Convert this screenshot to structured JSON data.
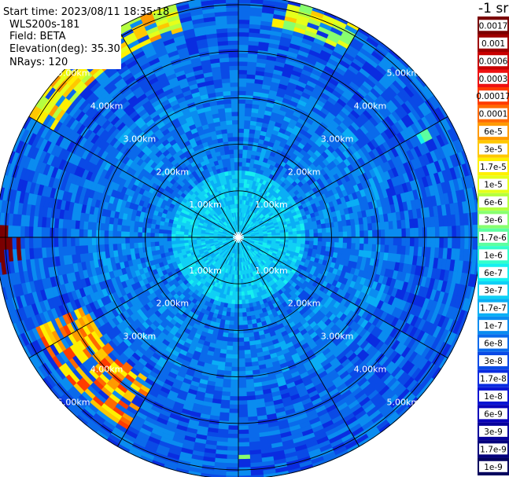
{
  "info": {
    "start_time": "Start time: 2023/08/11 18:35:18",
    "instrument": "WLS200s-181",
    "field": "Field: BETA",
    "elevation": "Elevation(deg): 35.30",
    "nrays": "NRays: 120"
  },
  "colorbar": {
    "unit_label": "-1 sr",
    "entries": [
      {
        "label": "0.0017",
        "color": "#7a0000"
      },
      {
        "label": "0.001",
        "color": "#9e0000"
      },
      {
        "label": "0.0006",
        "color": "#c80000"
      },
      {
        "label": "0.0003",
        "color": "#ee1111"
      },
      {
        "label": "0.00017",
        "color": "#ff3b00"
      },
      {
        "label": "0.0001",
        "color": "#ff6a00"
      },
      {
        "label": "6e-5",
        "color": "#ff9a00"
      },
      {
        "label": "3e-5",
        "color": "#ffc800"
      },
      {
        "label": "1.7e-5",
        "color": "#fff000"
      },
      {
        "label": "1e-5",
        "color": "#e6ff1a"
      },
      {
        "label": "6e-6",
        "color": "#b5ff40"
      },
      {
        "label": "3e-6",
        "color": "#88ff6e"
      },
      {
        "label": "1.7e-6",
        "color": "#5cffa0"
      },
      {
        "label": "1e-6",
        "color": "#33ffcc"
      },
      {
        "label": "6e-7",
        "color": "#16f0f0"
      },
      {
        "label": "3e-7",
        "color": "#10d0f5"
      },
      {
        "label": "1.7e-7",
        "color": "#0aaef5"
      },
      {
        "label": "1e-7",
        "color": "#0a8cf0"
      },
      {
        "label": "6e-8",
        "color": "#0a6aeb"
      },
      {
        "label": "3e-8",
        "color": "#0a4ae6"
      },
      {
        "label": "1.7e-8",
        "color": "#0a2ce0"
      },
      {
        "label": "1e-8",
        "color": "#0a14d2"
      },
      {
        "label": "6e-9",
        "color": "#0800b8"
      },
      {
        "label": "3e-9",
        "color": "#06009a"
      },
      {
        "label": "1.7e-9",
        "color": "#04007c"
      },
      {
        "label": "1e-9",
        "color": "#02005e"
      }
    ]
  },
  "chart_data": {
    "type": "heatmap",
    "projection": "polar (PPI scan)",
    "rays": 120,
    "max_range_km": 5.2,
    "range_rings": [
      {
        "km": 1,
        "label": "1.00km"
      },
      {
        "km": 2,
        "label": "2.00km"
      },
      {
        "km": 3,
        "label": "3.00km"
      },
      {
        "km": 4,
        "label": "4.00km"
      },
      {
        "km": 5,
        "label": "5.00km"
      }
    ],
    "spoke_angles_deg": [
      0,
      30,
      60,
      90,
      120,
      150,
      180,
      210,
      240,
      270,
      300,
      330
    ],
    "field_description": "backscatter coefficient BETA; near range ~3e-7 to 1e-6, mid range ~3e-8 to 1e-7, far range ~1.7e-8 to 6e-8",
    "high_value_regions": [
      {
        "azimuth_deg_from": 300,
        "azimuth_deg_to": 345,
        "range_km_from": 4.6,
        "range_km_to": 5.2,
        "approx_value": "1.7e-5"
      },
      {
        "azimuth_deg_from": 10,
        "azimuth_deg_to": 30,
        "range_km_from": 4.6,
        "range_km_to": 5.2,
        "approx_value": "1e-5"
      },
      {
        "azimuth_deg_from": 210,
        "azimuth_deg_to": 245,
        "range_km_from": 3.6,
        "range_km_to": 4.8,
        "approx_value": "6e-5"
      },
      {
        "azimuth_deg_from": 262,
        "azimuth_deg_to": 274,
        "range_km_from": 4.7,
        "range_km_to": 5.2,
        "approx_value": "1e-4"
      },
      {
        "azimuth_deg_from": 60,
        "azimuth_deg_to": 64,
        "range_km_from": 4.4,
        "range_km_to": 4.7,
        "approx_value": "1e-6"
      },
      {
        "azimuth_deg_from": 174,
        "azimuth_deg_to": 180,
        "range_km_from": 4.6,
        "range_km_to": 4.8,
        "approx_value": "1e-5"
      }
    ]
  }
}
